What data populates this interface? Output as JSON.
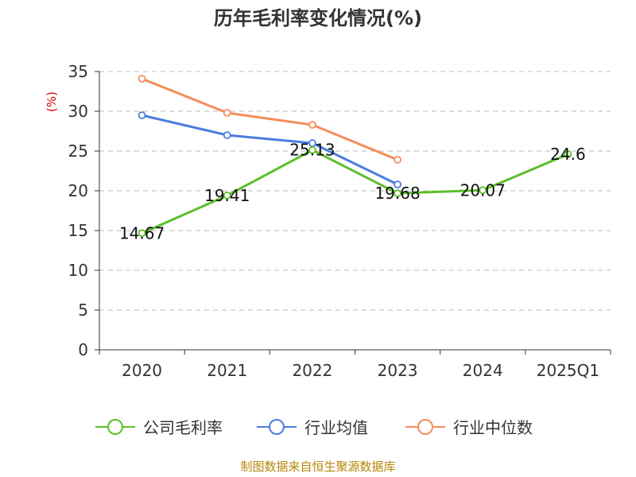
{
  "chart_data": {
    "type": "line",
    "title": "历年毛利率变化情况(%)",
    "ylabel": "(%)",
    "xlabel": "",
    "ylim": [
      0,
      35
    ],
    "yticks": [
      0,
      5,
      10,
      15,
      20,
      25,
      30,
      35
    ],
    "grid": "horizontal dashed",
    "legend_position": "bottom",
    "categories": [
      "2020",
      "2021",
      "2022",
      "2023",
      "2024",
      "2025Q1"
    ],
    "series": [
      {
        "name": "公司毛利率",
        "color": "#5cbf2a",
        "values": [
          14.67,
          19.41,
          25.13,
          19.68,
          20.07,
          24.6
        ],
        "labels": [
          "14.67",
          "19.41",
          "25.13",
          "19.68",
          "20.07",
          "24.6"
        ]
      },
      {
        "name": "行业均值",
        "color": "#4a7de0",
        "values": [
          29.5,
          27.0,
          26.0,
          20.8,
          null,
          null
        ]
      },
      {
        "name": "行业中位数",
        "color": "#f58d5a",
        "values": [
          34.1,
          29.8,
          28.3,
          23.9,
          null,
          null
        ]
      }
    ],
    "source": "制图数据来自恒生聚源数据库"
  }
}
